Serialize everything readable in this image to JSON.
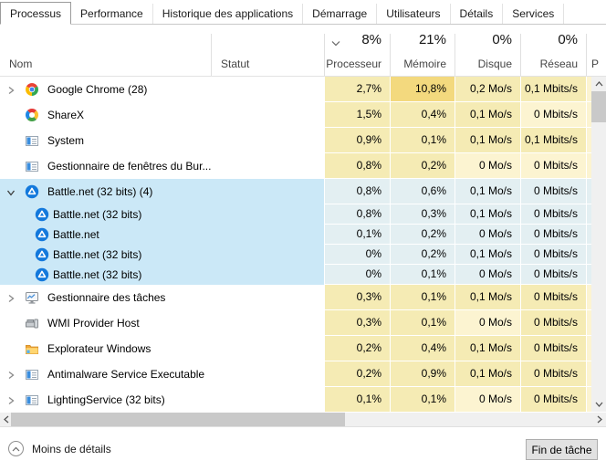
{
  "tabs": [
    {
      "id": "processus",
      "label": "Processus",
      "active": true
    },
    {
      "id": "performance",
      "label": "Performance",
      "active": false
    },
    {
      "id": "historique-applications",
      "label": "Historique des applications",
      "active": false
    },
    {
      "id": "demarrage",
      "label": "Démarrage",
      "active": false
    },
    {
      "id": "utilisateurs",
      "label": "Utilisateurs",
      "active": false
    },
    {
      "id": "details",
      "label": "Détails",
      "active": false
    },
    {
      "id": "services",
      "label": "Services",
      "active": false
    }
  ],
  "header": {
    "name_label": "Nom",
    "status_label": "Statut",
    "partial_next_column": "P",
    "metrics": [
      {
        "id": "cpu",
        "total": "8%",
        "label": "Processeur",
        "sorted": true
      },
      {
        "id": "memory",
        "total": "21%",
        "label": "Mémoire",
        "sorted": false
      },
      {
        "id": "disk",
        "total": "0%",
        "label": "Disque",
        "sorted": false
      },
      {
        "id": "network",
        "total": "0%",
        "label": "Réseau",
        "sorted": false
      }
    ]
  },
  "rows": [
    {
      "name": "Google Chrome (28)",
      "icon": "chrome-icon",
      "expander": "collapsed",
      "child": false,
      "selected": false,
      "status": "",
      "cpu": "2,7%",
      "memory": "10,8%",
      "disk": "0,2 Mo/s",
      "network": "0,1 Mbits/s",
      "shades": {
        "cpu": 1,
        "memory": 2,
        "disk": 1,
        "network": 1
      }
    },
    {
      "name": "ShareX",
      "icon": "sharex-icon",
      "expander": "none",
      "child": false,
      "selected": false,
      "status": "",
      "cpu": "1,5%",
      "memory": "0,4%",
      "disk": "0,1 Mo/s",
      "network": "0 Mbits/s",
      "shades": {
        "cpu": 1,
        "memory": 1,
        "disk": 1,
        "network": 0
      }
    },
    {
      "name": "System",
      "icon": "window-icon",
      "expander": "none",
      "child": false,
      "selected": false,
      "status": "",
      "cpu": "0,9%",
      "memory": "0,1%",
      "disk": "0,1 Mo/s",
      "network": "0,1 Mbits/s",
      "shades": {
        "cpu": 1,
        "memory": 1,
        "disk": 1,
        "network": 1
      }
    },
    {
      "name": "Gestionnaire de fenêtres du Bur...",
      "icon": "window-icon",
      "expander": "none",
      "child": false,
      "selected": false,
      "status": "",
      "cpu": "0,8%",
      "memory": "0,2%",
      "disk": "0 Mo/s",
      "network": "0 Mbits/s",
      "shades": {
        "cpu": 1,
        "memory": 1,
        "disk": 0,
        "network": 0
      }
    },
    {
      "name": "Battle.net (32 bits) (4)",
      "icon": "battlenet-icon",
      "expander": "expanded",
      "child": false,
      "selected": true,
      "status": "",
      "cpu": "0,8%",
      "memory": "0,6%",
      "disk": "0,1 Mo/s",
      "network": "0 Mbits/s",
      "shades": {
        "cpu": 1,
        "memory": 1,
        "disk": 1,
        "network": 1
      }
    },
    {
      "name": "Battle.net (32 bits)",
      "icon": "battlenet-icon",
      "expander": "none",
      "child": true,
      "selected": true,
      "status": "",
      "cpu": "0,8%",
      "memory": "0,3%",
      "disk": "0,1 Mo/s",
      "network": "0 Mbits/s",
      "shades": {
        "cpu": 1,
        "memory": 1,
        "disk": 1,
        "network": 1
      }
    },
    {
      "name": "Battle.net",
      "icon": "battlenet-icon",
      "expander": "none",
      "child": true,
      "selected": true,
      "status": "",
      "cpu": "0,1%",
      "memory": "0,2%",
      "disk": "0 Mo/s",
      "network": "0 Mbits/s",
      "shades": {
        "cpu": 1,
        "memory": 1,
        "disk": 0,
        "network": 1
      }
    },
    {
      "name": "Battle.net (32 bits)",
      "icon": "battlenet-icon",
      "expander": "none",
      "child": true,
      "selected": true,
      "status": "",
      "cpu": "0%",
      "memory": "0,2%",
      "disk": "0,1 Mo/s",
      "network": "0 Mbits/s",
      "shades": {
        "cpu": 1,
        "memory": 1,
        "disk": 1,
        "network": 1
      }
    },
    {
      "name": "Battle.net (32 bits)",
      "icon": "battlenet-icon",
      "expander": "none",
      "child": true,
      "selected": true,
      "status": "",
      "cpu": "0%",
      "memory": "0,1%",
      "disk": "0 Mo/s",
      "network": "0 Mbits/s",
      "shades": {
        "cpu": 1,
        "memory": 1,
        "disk": 0,
        "network": 1
      }
    },
    {
      "name": "Gestionnaire des tâches",
      "icon": "taskmanager-icon",
      "expander": "collapsed",
      "child": false,
      "selected": false,
      "status": "",
      "cpu": "0,3%",
      "memory": "0,1%",
      "disk": "0,1 Mo/s",
      "network": "0 Mbits/s",
      "shades": {
        "cpu": 1,
        "memory": 1,
        "disk": 1,
        "network": 1
      }
    },
    {
      "name": "WMI Provider Host",
      "icon": "wmi-icon",
      "expander": "none",
      "child": false,
      "selected": false,
      "status": "",
      "cpu": "0,3%",
      "memory": "0,1%",
      "disk": "0 Mo/s",
      "network": "0 Mbits/s",
      "shades": {
        "cpu": 1,
        "memory": 1,
        "disk": 0,
        "network": 1
      }
    },
    {
      "name": "Explorateur Windows",
      "icon": "explorer-icon",
      "expander": "none",
      "child": false,
      "selected": false,
      "status": "",
      "cpu": "0,2%",
      "memory": "0,4%",
      "disk": "0,1 Mo/s",
      "network": "0 Mbits/s",
      "shades": {
        "cpu": 1,
        "memory": 1,
        "disk": 1,
        "network": 1
      }
    },
    {
      "name": "Antimalware Service Executable",
      "icon": "window-icon",
      "expander": "collapsed",
      "child": false,
      "selected": false,
      "status": "",
      "cpu": "0,2%",
      "memory": "0,9%",
      "disk": "0,1 Mo/s",
      "network": "0 Mbits/s",
      "shades": {
        "cpu": 1,
        "memory": 1,
        "disk": 1,
        "network": 1
      }
    },
    {
      "name": "LightingService (32 bits)",
      "icon": "window-icon",
      "expander": "collapsed",
      "child": false,
      "selected": false,
      "status": "",
      "cpu": "0,1%",
      "memory": "0,1%",
      "disk": "0 Mo/s",
      "network": "0 Mbits/s",
      "shades": {
        "cpu": 1,
        "memory": 1,
        "disk": 0,
        "network": 1
      }
    }
  ],
  "footer": {
    "toggle_label": "Moins de détails",
    "end_task_label": "Fin de tâche"
  },
  "colors": {
    "heat_pale": "#fcf4d1",
    "heat_low": "#f5ebb4",
    "heat_mid": "#f3d97e",
    "selection": "#cbe8f7",
    "selection_cell": "#e3eff2"
  }
}
